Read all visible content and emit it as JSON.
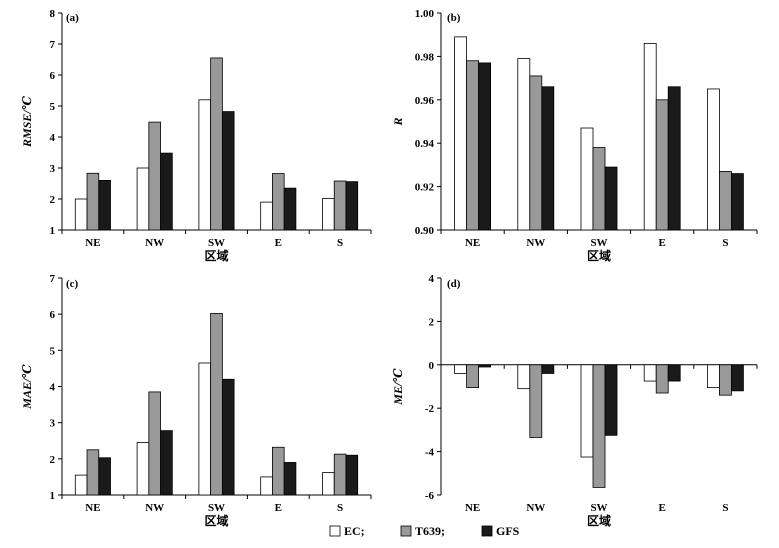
{
  "chart_data": [
    {
      "type": "bar",
      "panel_label": "(a)",
      "categories": [
        "NE",
        "NW",
        "SW",
        "E",
        "S"
      ],
      "series": [
        {
          "name": "EC",
          "values": [
            2.0,
            3.0,
            5.2,
            1.9,
            2.02
          ]
        },
        {
          "name": "T639",
          "values": [
            2.83,
            4.48,
            6.55,
            2.82,
            2.58
          ]
        },
        {
          "name": "GFS",
          "values": [
            2.6,
            3.48,
            4.82,
            2.35,
            2.56
          ]
        }
      ],
      "xlabel": "区域",
      "ylabel": "RMSE/℃",
      "ylim": [
        1,
        8
      ],
      "yticks": [
        1,
        2,
        3,
        4,
        5,
        6,
        7,
        8
      ]
    },
    {
      "type": "bar",
      "panel_label": "(b)",
      "categories": [
        "NE",
        "NW",
        "SW",
        "E",
        "S"
      ],
      "series": [
        {
          "name": "EC",
          "values": [
            0.989,
            0.979,
            0.947,
            0.986,
            0.965
          ]
        },
        {
          "name": "T639",
          "values": [
            0.978,
            0.971,
            0.938,
            0.96,
            0.927
          ]
        },
        {
          "name": "GFS",
          "values": [
            0.977,
            0.966,
            0.929,
            0.966,
            0.926
          ]
        }
      ],
      "xlabel": "区域",
      "ylabel": "R",
      "ylim": [
        0.9,
        1.0
      ],
      "yticks": [
        "0.90",
        "0.92",
        "0.94",
        "0.96",
        "0.98",
        "1.00"
      ]
    },
    {
      "type": "bar",
      "panel_label": "(c)",
      "categories": [
        "NE",
        "NW",
        "SW",
        "E",
        "S"
      ],
      "series": [
        {
          "name": "EC",
          "values": [
            1.55,
            2.45,
            4.65,
            1.5,
            1.62
          ]
        },
        {
          "name": "T639",
          "values": [
            2.25,
            3.85,
            6.02,
            2.32,
            2.13
          ]
        },
        {
          "name": "GFS",
          "values": [
            2.03,
            2.78,
            4.2,
            1.9,
            2.1
          ]
        }
      ],
      "xlabel": "区域",
      "ylabel": "MAE/℃",
      "ylim": [
        1,
        7
      ],
      "yticks": [
        1,
        2,
        3,
        4,
        5,
        6,
        7
      ]
    },
    {
      "type": "bar",
      "panel_label": "(d)",
      "categories": [
        "NE",
        "NW",
        "SW",
        "E",
        "S"
      ],
      "series": [
        {
          "name": "EC",
          "values": [
            -0.4,
            -1.1,
            -4.25,
            -0.75,
            -1.05
          ]
        },
        {
          "name": "T639",
          "values": [
            -1.05,
            -3.35,
            -5.65,
            -1.3,
            -1.4
          ]
        },
        {
          "name": "GFS",
          "values": [
            -0.1,
            -0.4,
            -3.25,
            -0.75,
            -1.2
          ]
        }
      ],
      "xlabel": "区域",
      "ylabel": "ME/℃",
      "ylim": [
        -6,
        4
      ],
      "yticks": [
        -6,
        -4,
        -2,
        0,
        2,
        4
      ],
      "baseline": 0
    }
  ],
  "legend": {
    "items": [
      {
        "label": "EC;",
        "color": "#ffffff"
      },
      {
        "label": "T639;",
        "color": "#999999"
      },
      {
        "label": "GFS",
        "color": "#1a1a1a"
      }
    ]
  },
  "colors": {
    "EC": "#ffffff",
    "T639": "#999999",
    "GFS": "#1a1a1a"
  }
}
